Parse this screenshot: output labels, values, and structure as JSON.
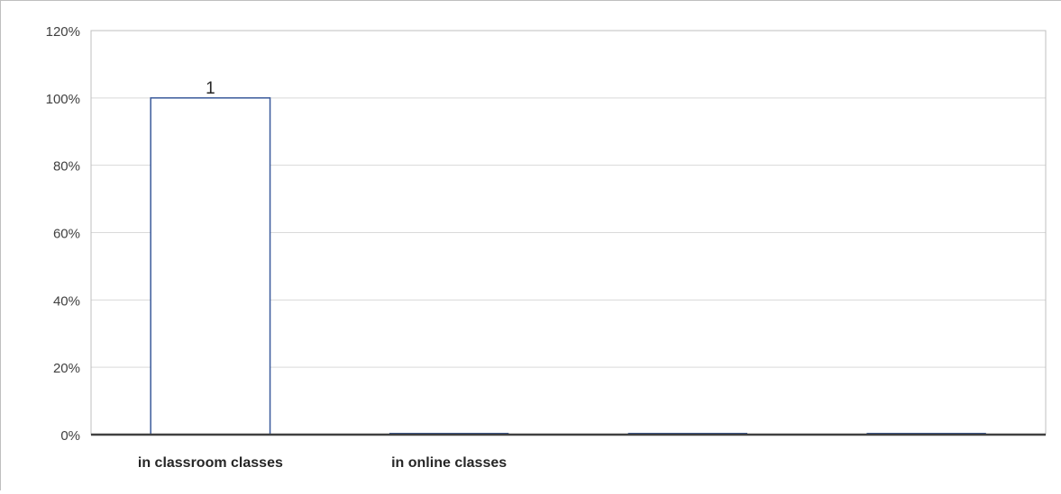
{
  "chart_data": {
    "type": "bar",
    "categories": [
      "in classroom classes",
      "in online classes",
      "",
      ""
    ],
    "values": [
      1,
      0,
      0,
      0
    ],
    "data_labels": [
      "1",
      "",
      "",
      ""
    ],
    "title": "",
    "xlabel": "",
    "ylabel": "",
    "ylim": [
      0,
      1.2
    ],
    "y_ticks": [
      0,
      0.2,
      0.4,
      0.6,
      0.8,
      1.0,
      1.2
    ],
    "y_tick_labels": [
      "0%",
      "20%",
      "40%",
      "60%",
      "80%",
      "100%",
      "120%"
    ],
    "y_format": "percent",
    "grid": true,
    "legend": "none",
    "colors": {
      "bar_fill": "#ffffff",
      "bar_stroke": "#3a5a9b",
      "grid": "#d9d9d9",
      "axis": "#404040",
      "plot_border": "#bfbfbf",
      "text": "#404040"
    }
  }
}
